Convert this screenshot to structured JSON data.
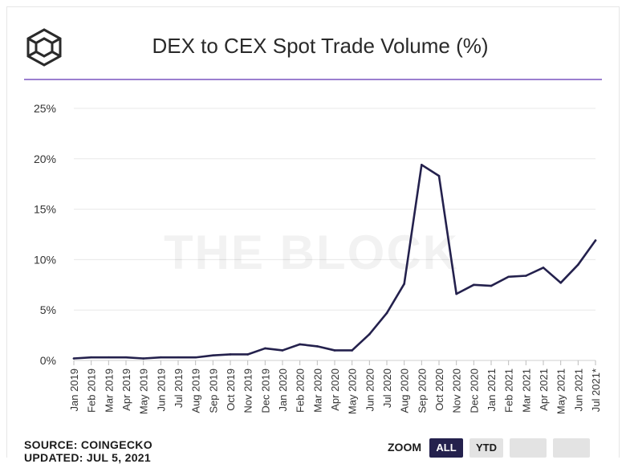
{
  "header": {
    "title": "DEX to CEX Spot Trade Volume (%)"
  },
  "watermark": "THE BLOCK",
  "footer": {
    "source": "SOURCE: COINGECKO",
    "updated": "UPDATED: JUL 5, 2021"
  },
  "zoom": {
    "label": "ZOOM",
    "options": [
      "ALL",
      "YTD",
      "",
      ""
    ],
    "selected": "ALL"
  },
  "colors": {
    "line": "#24214d",
    "divider": "#9b7fd0",
    "grid": "#e8e8e8",
    "active_button": "#24214d"
  },
  "chart_data": {
    "type": "line",
    "title": "DEX to CEX Spot Trade Volume (%)",
    "xlabel": "",
    "ylabel": "",
    "ylim": [
      0,
      25
    ],
    "yticks": [
      "0%",
      "5%",
      "10%",
      "15%",
      "20%",
      "25%"
    ],
    "grid": true,
    "categories": [
      "Jan 2019",
      "Feb 2019",
      "Mar 2019",
      "Apr 2019",
      "May 2019",
      "Jun 2019",
      "Jul 2019",
      "Aug 2019",
      "Sep 2019",
      "Oct 2019",
      "Nov 2019",
      "Dec 2019",
      "Jan 2020",
      "Feb 2020",
      "Mar 2020",
      "Apr 2020",
      "May 2020",
      "Jun 2020",
      "Jul 2020",
      "Aug 2020",
      "Sep 2020",
      "Oct 2020",
      "Nov 2020",
      "Dec 2020",
      "Jan 2021",
      "Feb 2021",
      "Mar 2021",
      "Apr 2021",
      "May 2021",
      "Jun 2021",
      "Jul 2021*"
    ],
    "series": [
      {
        "values": [
          0.2,
          0.3,
          0.3,
          0.3,
          0.2,
          0.3,
          0.3,
          0.3,
          0.5,
          0.6,
          0.6,
          1.2,
          1.0,
          1.6,
          1.4,
          1.0,
          1.0,
          2.6,
          4.7,
          7.6,
          19.4,
          18.3,
          6.6,
          7.5,
          7.4,
          8.3,
          8.4,
          9.2,
          7.7,
          9.5,
          11.9
        ]
      }
    ]
  }
}
